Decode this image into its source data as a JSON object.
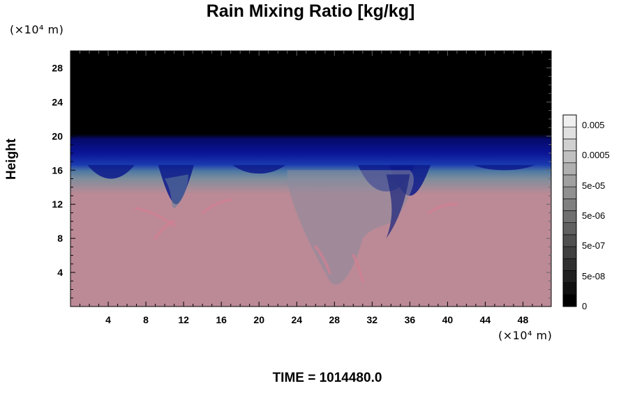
{
  "chart_data": {
    "type": "heatmap",
    "title": "Rain Mixing Ratio [kg/kg]",
    "xlabel": "",
    "ylabel": "Height",
    "x_unit": "(×10⁴ m)",
    "y_unit": "(×10⁴ m)",
    "xlim": [
      0,
      51
    ],
    "ylim": [
      0,
      30
    ],
    "x_ticks": [
      4,
      8,
      12,
      16,
      20,
      24,
      28,
      32,
      36,
      40,
      44,
      48
    ],
    "y_ticks": [
      4,
      8,
      12,
      16,
      20,
      24,
      28
    ],
    "colorbar": {
      "labels": [
        "0",
        "5e-08",
        "5e-07",
        "5e-06",
        "5e-05",
        "0.0005",
        "0.005"
      ],
      "levels": 16
    },
    "field_layers": [
      {
        "band": "upper",
        "y_from": 20,
        "y_to": 30,
        "color": "#000000"
      },
      {
        "band": "transition",
        "y_from": 16.5,
        "y_to": 20,
        "color": "#0a1496"
      },
      {
        "band": "mixed",
        "y_from": 13.5,
        "y_to": 16.5,
        "color": "#5b7f9c"
      },
      {
        "band": "lower",
        "y_from": 0,
        "y_to": 13.5,
        "color": "#bb8a96"
      }
    ],
    "annotation": "TIME = 1014480.0"
  },
  "colors": {
    "background": "#ffffff",
    "upper": "#000000",
    "blue": "#0a1496",
    "teal": "#5b7f9c",
    "pink": "#bb8a96"
  }
}
